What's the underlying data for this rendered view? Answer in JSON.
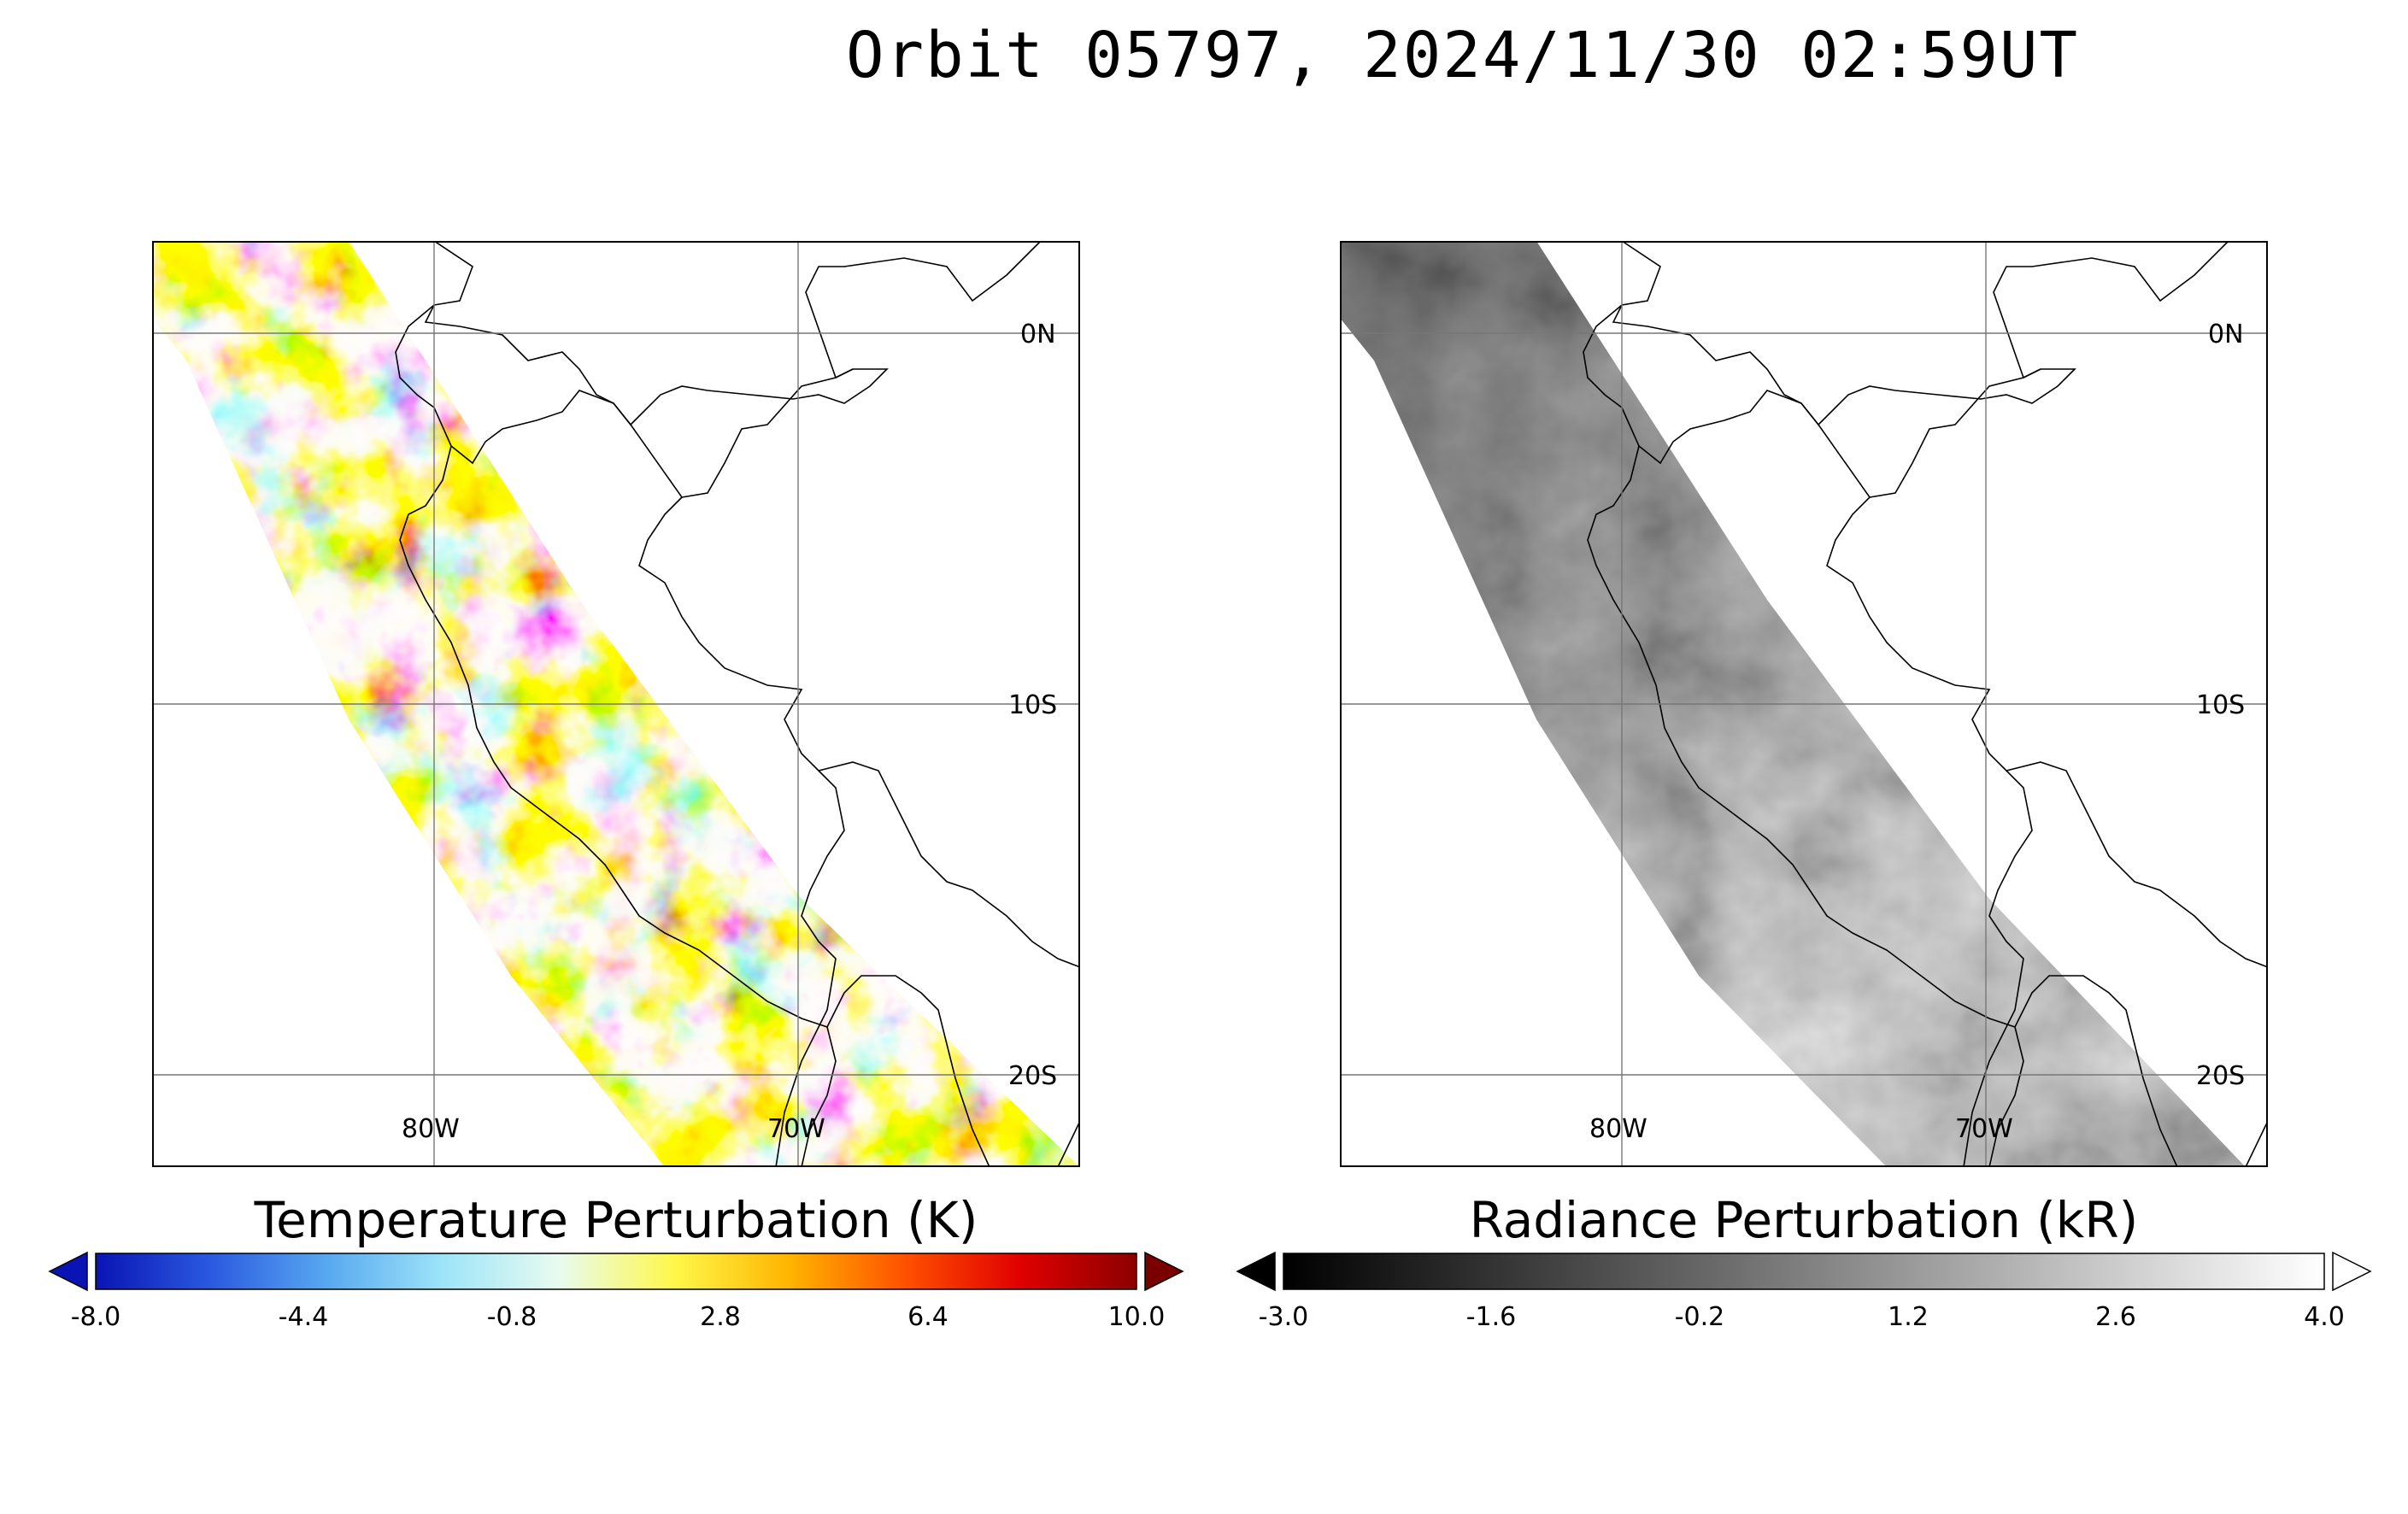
{
  "title": "Orbit 05797, 2024/11/30 02:59UT",
  "panels": [
    {
      "name": "temperature",
      "lat_labels": [
        "0N",
        "10S",
        "20S"
      ],
      "lon_labels": [
        "80W",
        "70W"
      ],
      "colorbar": {
        "title": "Temperature Perturbation (K)",
        "ticks": [
          "-8.0",
          "-4.4",
          "-0.8",
          "2.8",
          "6.4",
          "10.0"
        ],
        "range": [
          -8.0,
          10.0
        ],
        "colormap": [
          "#0a14b4",
          "#2a5ae0",
          "#58a8f0",
          "#9de4f8",
          "#e8fbf0",
          "#fff84a",
          "#ffb400",
          "#ff5000",
          "#e00000",
          "#8c0000"
        ],
        "extend_low_color": "#0a14b4",
        "extend_high_color": "#7a0000"
      }
    },
    {
      "name": "radiance",
      "lat_labels": [
        "0N",
        "10S",
        "20S"
      ],
      "lon_labels": [
        "80W",
        "70W"
      ],
      "colorbar": {
        "title": "Radiance Perturbation (kR)",
        "ticks": [
          "-3.0",
          "-1.6",
          "-0.2",
          "1.2",
          "2.6",
          "4.0"
        ],
        "range": [
          -3.0,
          4.0
        ],
        "colormap": [
          "#000000",
          "#ffffff"
        ],
        "extend_low_color": "#000000",
        "extend_high_color": "#ffffff"
      }
    }
  ]
}
